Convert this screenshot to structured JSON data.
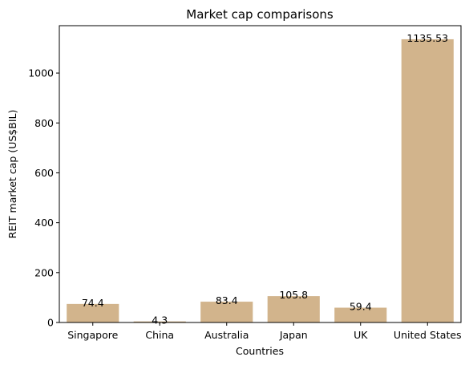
{
  "chart_data": {
    "type": "bar",
    "title": "Market cap comparisons",
    "xlabel": "Countries",
    "ylabel": "REIT market cap (US$BIL)",
    "categories": [
      "Singapore",
      "China",
      "Australia",
      "Japan",
      "UK",
      "United States"
    ],
    "values": [
      74.4,
      4.3,
      83.4,
      105.8,
      59.4,
      1135.53
    ],
    "data_labels": [
      "74.4",
      "4.3",
      "83.4",
      "105.8",
      "59.4",
      "1135.53"
    ],
    "ylim": [
      0,
      1190
    ],
    "yticks": [
      0,
      200,
      400,
      600,
      800,
      1000
    ],
    "grid": false,
    "bar_color": "#d2b48c"
  }
}
